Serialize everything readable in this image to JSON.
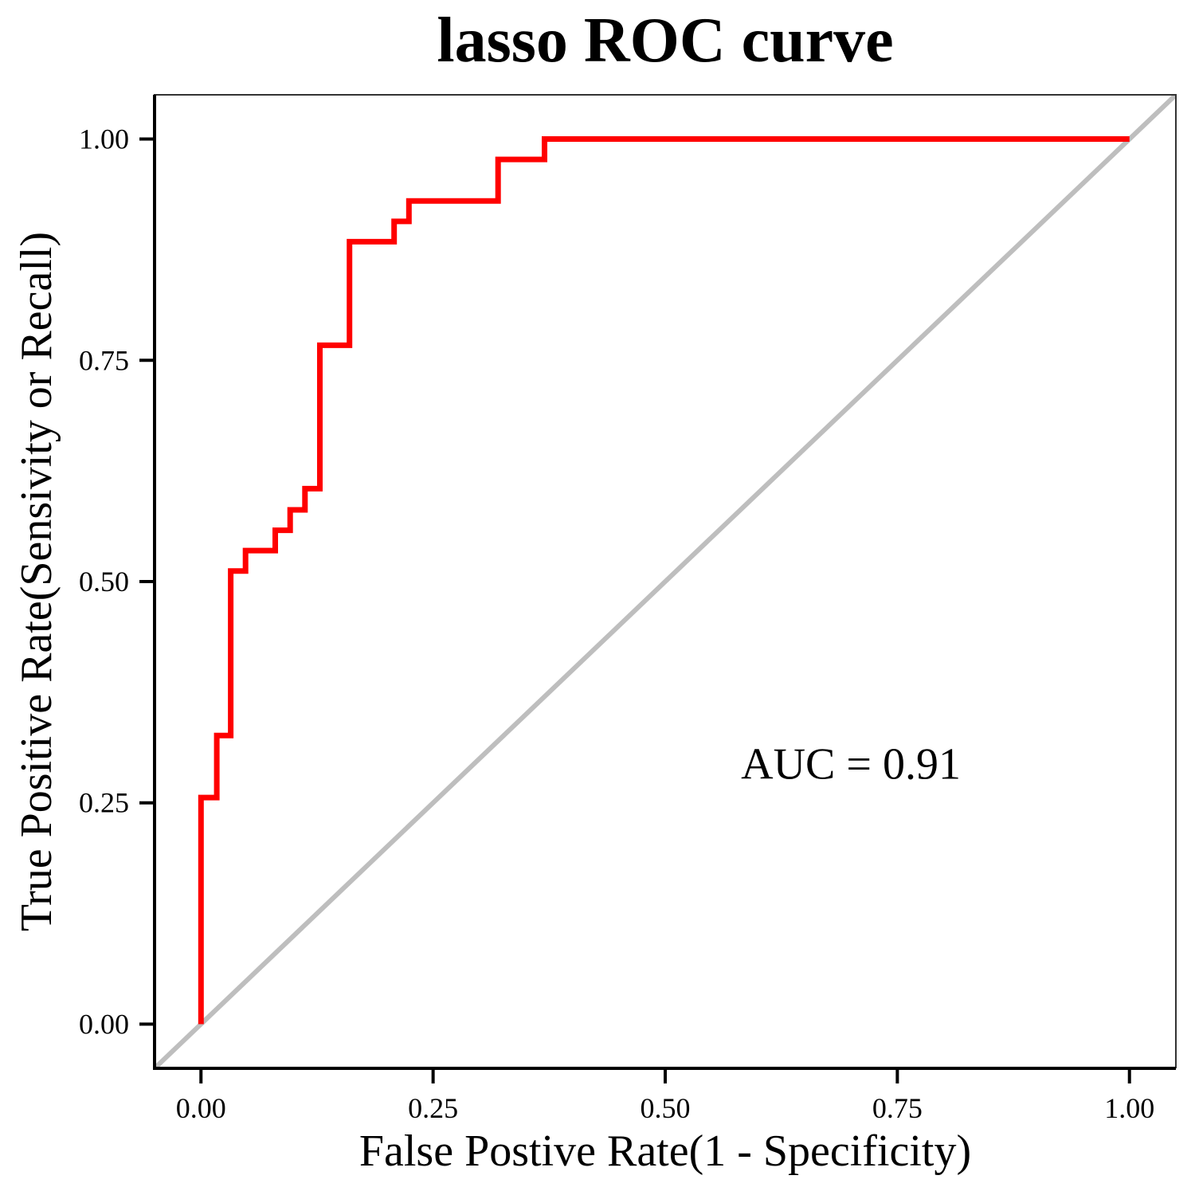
{
  "chart_data": {
    "type": "line",
    "title": "lasso ROC curve",
    "xlabel": "False Postive Rate(1 - Specificity)",
    "ylabel": "True Positive Rate(Sensivity or Recall)",
    "xlim": [
      -0.05,
      1.05
    ],
    "ylim": [
      -0.05,
      1.05
    ],
    "x_ticks": [
      0.0,
      0.25,
      0.5,
      0.75,
      1.0
    ],
    "x_tick_labels": [
      "0.00",
      "0.25",
      "0.50",
      "0.75",
      "1.00"
    ],
    "y_ticks": [
      0.0,
      0.25,
      0.5,
      0.75,
      1.0
    ],
    "y_tick_labels": [
      "0.00",
      "0.25",
      "0.50",
      "0.75",
      "1.00"
    ],
    "grid": false,
    "annotation": {
      "text": "AUC = 0.91",
      "x": 0.7,
      "y": 0.295
    },
    "series": [
      {
        "color": "#ff0000",
        "style": "step",
        "x": [
          0.0,
          0.0,
          0.017,
          0.017,
          0.032,
          0.032,
          0.048,
          0.048,
          0.08,
          0.08,
          0.096,
          0.096,
          0.112,
          0.112,
          0.128,
          0.128,
          0.16,
          0.16,
          0.208,
          0.208,
          0.224,
          0.224,
          0.32,
          0.32,
          0.37,
          0.37,
          1.0
        ],
        "y": [
          0.0,
          0.256,
          0.256,
          0.326,
          0.326,
          0.512,
          0.512,
          0.535,
          0.535,
          0.558,
          0.558,
          0.581,
          0.581,
          0.605,
          0.605,
          0.767,
          0.767,
          0.884,
          0.884,
          0.907,
          0.907,
          0.93,
          0.93,
          0.977,
          0.977,
          1.0,
          1.0
        ]
      },
      {
        "color": "#bebebe",
        "style": "line",
        "x": [
          -0.05,
          1.05
        ],
        "y": [
          -0.05,
          1.05
        ]
      }
    ]
  }
}
